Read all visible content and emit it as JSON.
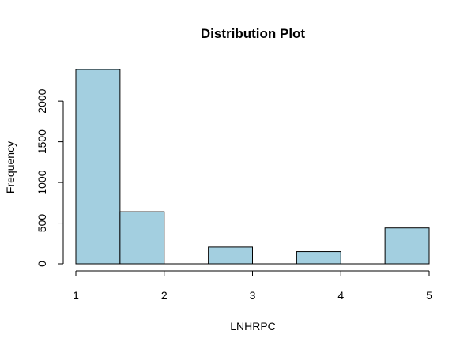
{
  "chart_data": {
    "type": "bar",
    "title": "Distribution Plot",
    "xlabel": "LNHRPC",
    "ylabel": "Frequency",
    "bins": [
      {
        "x0": 1.0,
        "x1": 1.5,
        "value": 2390
      },
      {
        "x0": 1.5,
        "x1": 2.0,
        "value": 640
      },
      {
        "x0": 2.0,
        "x1": 2.5,
        "value": 0
      },
      {
        "x0": 2.5,
        "x1": 3.0,
        "value": 205
      },
      {
        "x0": 3.0,
        "x1": 3.5,
        "value": 0
      },
      {
        "x0": 3.5,
        "x1": 4.0,
        "value": 150
      },
      {
        "x0": 4.0,
        "x1": 4.5,
        "value": 0
      },
      {
        "x0": 4.5,
        "x1": 5.0,
        "value": 440
      }
    ],
    "xlim": [
      1,
      5
    ],
    "ylim": [
      0,
      2390
    ],
    "x_ticks": [
      "1",
      "2",
      "3",
      "4",
      "5"
    ],
    "y_ticks": [
      "0",
      "500",
      "1000",
      "1500",
      "2000"
    ],
    "bar_color": "#a3cfe0",
    "grid": false
  }
}
